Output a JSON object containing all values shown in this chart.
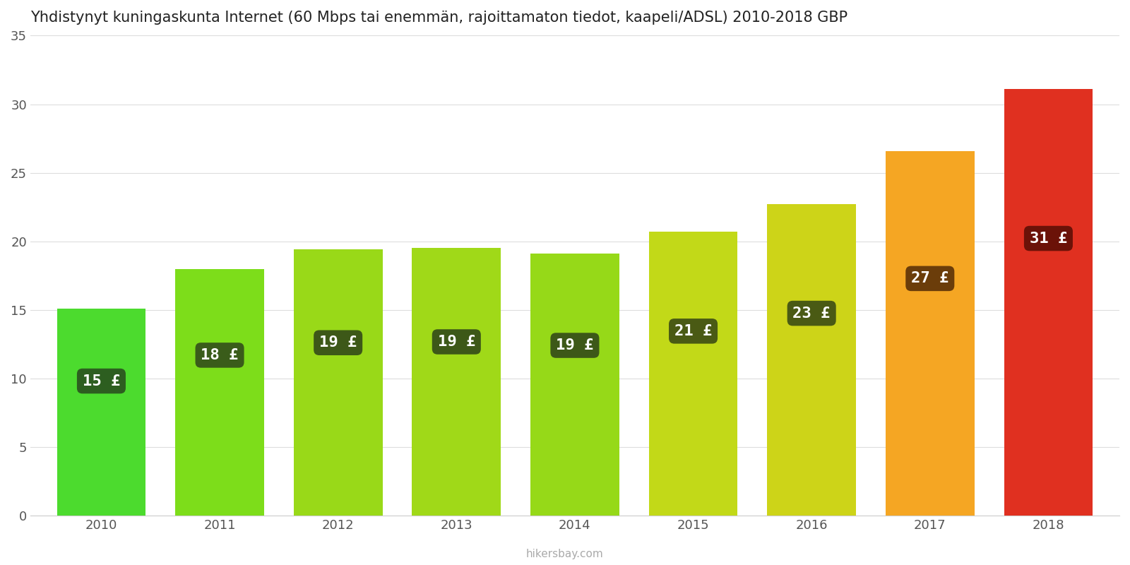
{
  "title": "Yhdistynyt kuningaskunta Internet (60 Mbps tai enemmän, rajoittamaton tiedot, kaapeli/ADSL) 2010-2018 GBP",
  "years": [
    2010,
    2011,
    2012,
    2013,
    2014,
    2015,
    2016,
    2017,
    2018
  ],
  "values": [
    15.1,
    18.0,
    19.4,
    19.5,
    19.1,
    20.7,
    22.7,
    26.6,
    31.1
  ],
  "labels": [
    "15 £",
    "18 £",
    "19 £",
    "19 £",
    "19 £",
    "21 £",
    "23 £",
    "27 £",
    "31 £"
  ],
  "bar_colors": [
    "#4cdb2e",
    "#7ddd1a",
    "#99d918",
    "#a0d918",
    "#96d918",
    "#c2d918",
    "#cdd418",
    "#f5a623",
    "#e03020"
  ],
  "label_bg_colors": [
    "#2d5e20",
    "#3a5c1a",
    "#3d5818",
    "#3d5818",
    "#3d5818",
    "#4a5a14",
    "#4a5a14",
    "#6b3d0a",
    "#6b1208"
  ],
  "ylabel_values": [
    0,
    5,
    10,
    15,
    20,
    25,
    30,
    35
  ],
  "ylim": [
    0,
    35
  ],
  "watermark": "hikersbay.com",
  "background_color": "#ffffff",
  "title_fontsize": 15,
  "label_fontsize": 16,
  "tick_fontsize": 13,
  "bar_width": 0.75
}
